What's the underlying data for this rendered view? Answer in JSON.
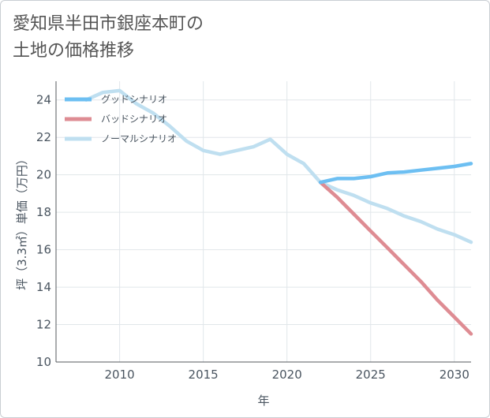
{
  "title_lines": [
    "愛知県半田市銀座本町の",
    "土地の価格推移"
  ],
  "chart_data": {
    "type": "line",
    "xlabel": "年",
    "ylabel": "坪（3.3㎡）単価（万円）",
    "xlim": [
      2006.2,
      2031
    ],
    "ylim": [
      10,
      25
    ],
    "x_ticks": [
      2010,
      2015,
      2020,
      2025,
      2030
    ],
    "y_ticks": [
      10,
      12,
      14,
      16,
      18,
      20,
      22,
      24
    ],
    "grid": true,
    "legend_position": "top-left",
    "series": [
      {
        "name": "グッドシナリオ",
        "color": "#6dbff2",
        "x": [
          2022,
          2023,
          2024,
          2025,
          2026,
          2027,
          2028,
          2029,
          2030,
          2031
        ],
        "values": [
          19.6,
          19.8,
          19.8,
          19.9,
          20.1,
          20.15,
          20.25,
          20.35,
          20.45,
          20.6
        ]
      },
      {
        "name": "バッドシナリオ",
        "color": "#de8c93",
        "x": [
          2022,
          2023,
          2024,
          2025,
          2026,
          2027,
          2028,
          2029,
          2030,
          2031
        ],
        "values": [
          19.6,
          18.8,
          17.9,
          17.0,
          16.1,
          15.2,
          14.3,
          13.3,
          12.4,
          11.5
        ]
      },
      {
        "name": "ノーマルシナリオ",
        "color": "#bfdff0",
        "x": [
          2008,
          2009,
          2010,
          2011,
          2012,
          2013,
          2014,
          2015,
          2016,
          2017,
          2018,
          2019,
          2020,
          2021,
          2022,
          2023,
          2024,
          2025,
          2026,
          2027,
          2028,
          2029,
          2030,
          2031
        ],
        "values": [
          24.0,
          24.4,
          24.5,
          23.8,
          23.3,
          22.6,
          21.8,
          21.3,
          21.1,
          21.3,
          21.5,
          21.9,
          21.1,
          20.6,
          19.6,
          19.2,
          18.9,
          18.5,
          18.2,
          17.8,
          17.5,
          17.1,
          16.8,
          16.4
        ]
      }
    ]
  }
}
